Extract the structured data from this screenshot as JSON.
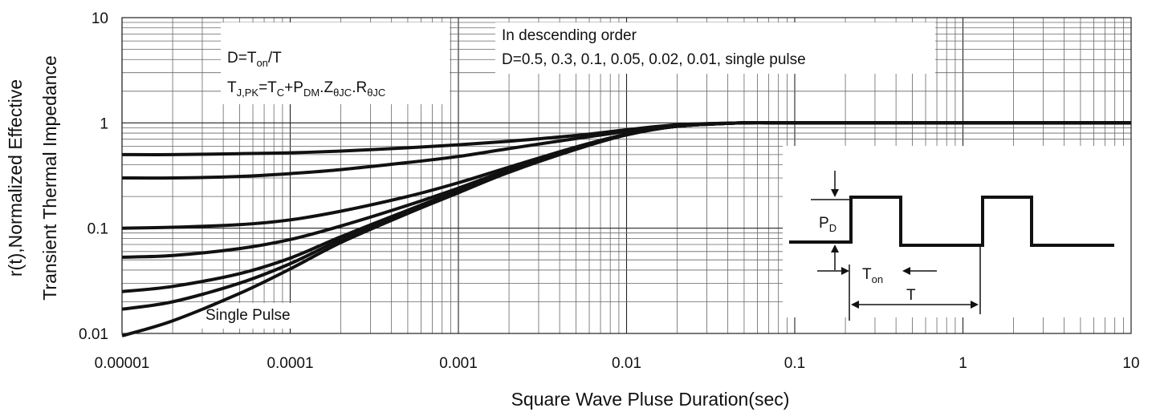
{
  "chart_data": {
    "type": "line",
    "x_scale": "log",
    "y_scale": "log",
    "xlim": [
      1e-05,
      10
    ],
    "ylim": [
      0.01,
      10
    ],
    "grid": true,
    "xlabel": "Square Wave Pluse Duration(sec)",
    "ylabel_line1": "r(t),Normalized Effective",
    "ylabel_line2": "Transient Thermal Impedance",
    "x_ticks": [
      "0.00001",
      "0.0001",
      "0.001",
      "0.01",
      "0.1",
      "1",
      "10"
    ],
    "y_ticks": [
      "10",
      "1",
      "0.1",
      "0.01"
    ],
    "annotations": {
      "duty_formula": {
        "base": "D=T",
        "sub": "on",
        "tail": "/T"
      },
      "tj_formula": {
        "p1": "T",
        "s1": "J,PK",
        "p2": "=T",
        "s2": "C",
        "p3": "+P",
        "s3": "DM",
        "p4": ".Z",
        "s4": "θJC",
        "p5": ".R",
        "s5": "θJC"
      },
      "order_line1": "In descending order",
      "order_line2": "D=0.5, 0.3, 0.1, 0.05, 0.02, 0.01, single pulse",
      "single_pulse": "Single Pulse"
    },
    "inset": {
      "pd_base": "P",
      "pd_sub": "D",
      "ton_base": "T",
      "ton_sub": "on",
      "period": "T"
    },
    "x": [
      1e-05,
      2e-05,
      5e-05,
      0.0001,
      0.0002,
      0.0005,
      0.001,
      0.002,
      0.005,
      0.01,
      0.02,
      0.05,
      0.1,
      1,
      10
    ],
    "series": [
      {
        "duty": 0.5,
        "values": [
          0.5,
          0.5,
          0.51,
          0.52,
          0.54,
          0.58,
          0.62,
          0.67,
          0.76,
          0.86,
          0.96,
          1.0,
          1.0,
          1.0,
          1.0
        ]
      },
      {
        "duty": 0.3,
        "values": [
          0.3,
          0.3,
          0.31,
          0.33,
          0.36,
          0.42,
          0.48,
          0.57,
          0.71,
          0.83,
          0.95,
          1.0,
          1.0,
          1.0,
          1.0
        ]
      },
      {
        "duty": 0.1,
        "values": [
          0.1,
          0.102,
          0.108,
          0.12,
          0.145,
          0.2,
          0.27,
          0.38,
          0.59,
          0.78,
          0.93,
          1.0,
          1.0,
          1.0,
          1.0
        ]
      },
      {
        "duty": 0.05,
        "values": [
          0.053,
          0.055,
          0.064,
          0.078,
          0.105,
          0.165,
          0.24,
          0.36,
          0.58,
          0.77,
          0.93,
          1.0,
          1.0,
          1.0,
          1.0
        ]
      },
      {
        "duty": 0.02,
        "values": [
          0.025,
          0.028,
          0.037,
          0.052,
          0.083,
          0.148,
          0.228,
          0.35,
          0.57,
          0.77,
          0.93,
          1.0,
          1.0,
          1.0,
          1.0
        ]
      },
      {
        "duty": 0.01,
        "values": [
          0.017,
          0.02,
          0.03,
          0.046,
          0.078,
          0.143,
          0.222,
          0.345,
          0.565,
          0.77,
          0.93,
          1.0,
          1.0,
          1.0,
          1.0
        ]
      },
      {
        "duty": "single pulse",
        "values": [
          0.0095,
          0.0132,
          0.024,
          0.041,
          0.073,
          0.138,
          0.217,
          0.34,
          0.56,
          0.77,
          0.93,
          1.0,
          1.0,
          1.0,
          1.0
        ]
      }
    ]
  }
}
